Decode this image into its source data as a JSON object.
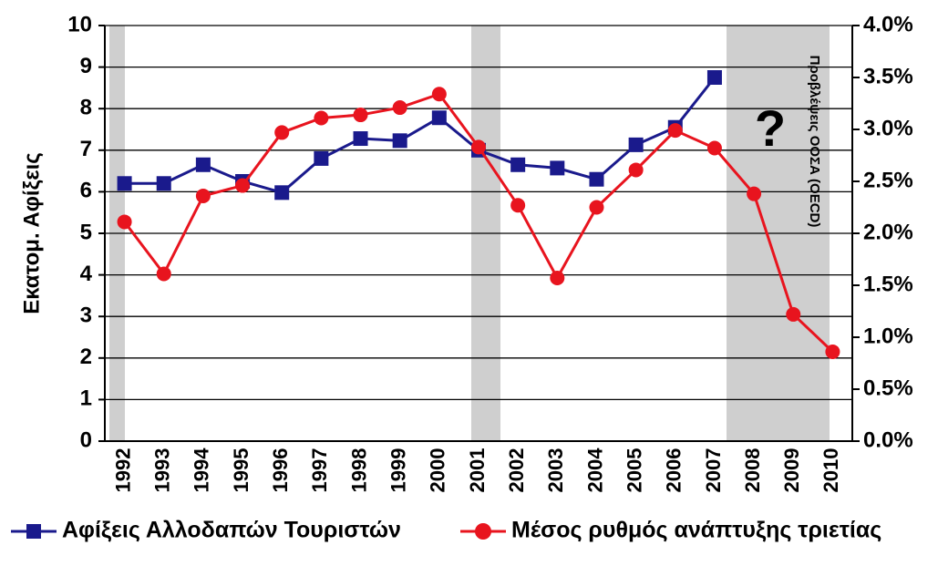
{
  "chart_data": {
    "type": "line",
    "y_label": "Εκατομ. Αφίξεις",
    "annotations": [
      "?",
      "Προβλέψεις ΟΟΣΑ (OECD)"
    ],
    "categories": [
      "1992",
      "1993",
      "1994",
      "1995",
      "1996",
      "1997",
      "1998",
      "1999",
      "2000",
      "2001",
      "2002",
      "2003",
      "2004",
      "2005",
      "2006",
      "2007",
      "2008",
      "2009",
      "2010"
    ],
    "series": [
      {
        "name": "Αφίξεις Αλλοδαπών Τουριστών",
        "color": "#1a1a8c",
        "marker": "square",
        "values": [
          6.2,
          6.2,
          6.65,
          6.25,
          5.98,
          6.8,
          7.28,
          7.23,
          7.78,
          7.0,
          6.65,
          6.57,
          6.3,
          7.13,
          7.55,
          8.75,
          null,
          null,
          null
        ]
      },
      {
        "name": "Μέσος ρυθμός ανάπτυξης τριετίας",
        "color": "#e8141e",
        "marker": "circle",
        "axis": "y2",
        "values": [
          2.11,
          1.61,
          2.36,
          2.46,
          2.97,
          3.11,
          3.14,
          3.21,
          3.34,
          2.83,
          2.27,
          1.57,
          2.25,
          2.61,
          2.99,
          2.82,
          2.38,
          1.22,
          0.86
        ]
      }
    ],
    "ylim": [
      0,
      10
    ],
    "yticks": [
      0,
      1,
      2,
      3,
      4,
      5,
      6,
      7,
      8,
      9,
      10
    ],
    "y2lim": [
      0,
      4
    ],
    "y2ticks": [
      {
        "value": 0,
        "label": "0.0%"
      },
      {
        "value": 0.5,
        "label": "0.5%"
      },
      {
        "value": 1,
        "label": "1.0%"
      },
      {
        "value": 1.5,
        "label": "1.5%"
      },
      {
        "value": 2,
        "label": "2.0%"
      },
      {
        "value": 2.5,
        "label": "2.5%"
      },
      {
        "value": 3,
        "label": "3.0%"
      },
      {
        "value": 3.5,
        "label": "3.5%"
      },
      {
        "value": 4,
        "label": "4.0%"
      }
    ],
    "grid": true,
    "legend": "bottom"
  }
}
